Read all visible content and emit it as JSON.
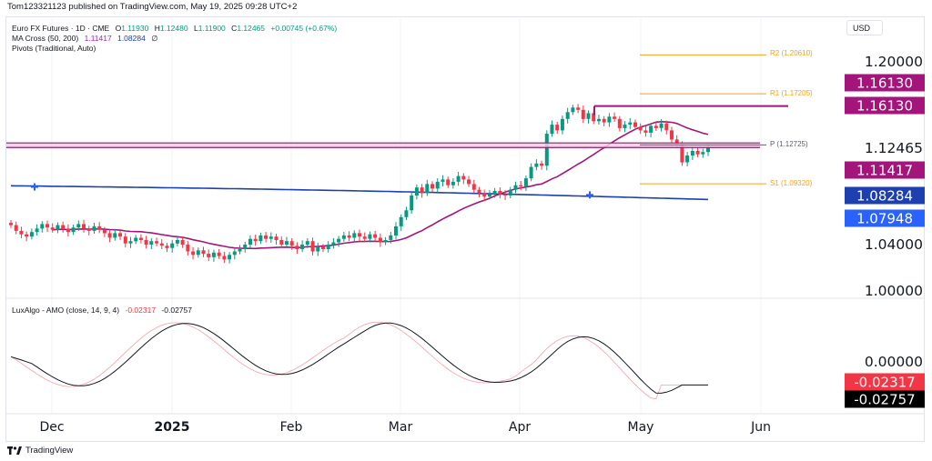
{
  "header": {
    "publish_text": "Tom123321123 published on TradingView.com, May 19, 2025 09:28 UTC+2"
  },
  "legend": {
    "symbol": "Euro FX Futures · 1D · CME",
    "o_label": "O",
    "o": "1.11930",
    "h_label": "H",
    "h": "1.12480",
    "l_label": "L",
    "l": "1.11900",
    "c_label": "C",
    "c": "1.12465",
    "change": "+0.00745 (+0.67%)",
    "ma_name": "MA Cross (50, 200)",
    "ma50": "1.11417",
    "ma200": "1.08284",
    "ma_icon": "∅",
    "pivots_name": "Pivots (Traditional, Auto)",
    "osc_name": "LuxAlgo - AMO (close, 14, 9, 4)",
    "osc_val1": "-0.02317",
    "osc_val2": "-0.02757"
  },
  "pivots": {
    "r2": "R2 (1.20610)",
    "r1": "R1 (1.17205)",
    "p": "P (1.12725)",
    "s1": "S1 (1.09320)"
  },
  "axis": {
    "currency_button": "USD",
    "price_ticks": [
      "1.20000",
      "1.12465",
      "1.04000",
      "1.00000"
    ],
    "osc_ticks": [
      "0.00000"
    ]
  },
  "badges": {
    "top_line_1": "1.16130",
    "top_line_2": "1.16130",
    "ma50": "1.11417",
    "ma200": "1.08284",
    "blue_level": "1.07948",
    "osc1": "-0.02317",
    "osc2": "-0.02757"
  },
  "months": [
    "Dec",
    "2025",
    "Feb",
    "Mar",
    "Apr",
    "May",
    "Jun"
  ],
  "footer": {
    "brand": "TradingView",
    "logo_icon": "tradingview-logo-icon"
  },
  "colors": {
    "up": "#089981",
    "down": "#f23645",
    "ma50": "#a3157a",
    "ma200": "#1e40af",
    "pivot": "#f7a21b",
    "zone": "#f6cbe6",
    "zone_line": "#8e1d71",
    "badge_magenta": "#a3157a",
    "badge_blue1": "#1d3fb0",
    "badge_blue2": "#2962ff",
    "badge_red": "#f23645",
    "badge_black": "#000000"
  },
  "chart_data": [
    {
      "type": "candlestick",
      "title": "Euro FX Futures · 1D · CME",
      "x_range": [
        "2024-11-20",
        "2025-05-19"
      ],
      "y_ticks": [
        1.2,
        1.12465,
        1.04,
        1.0
      ],
      "series": [
        {
          "name": "Euro FX Futures",
          "approx_close": [
            1.057,
            1.052,
            1.049,
            1.047,
            1.051,
            1.054,
            1.058,
            1.055,
            1.053,
            1.057,
            1.054,
            1.051,
            1.055,
            1.058,
            1.054,
            1.052,
            1.056,
            1.053,
            1.05,
            1.046,
            1.05,
            1.047,
            1.041,
            1.043,
            1.046,
            1.044,
            1.04,
            1.043,
            1.041,
            1.039,
            1.037,
            1.041,
            1.044,
            1.04,
            1.034,
            1.031,
            1.035,
            1.032,
            1.029,
            1.033,
            1.03,
            1.027,
            1.031,
            1.034,
            1.036,
            1.04,
            1.045,
            1.043,
            1.048,
            1.045,
            1.047,
            1.044,
            1.04,
            1.043,
            1.039,
            1.036,
            1.04,
            1.043,
            1.034,
            1.038,
            1.036,
            1.04,
            1.042,
            1.045,
            1.048,
            1.046,
            1.05,
            1.047,
            1.045,
            1.049,
            1.046,
            1.042,
            1.044,
            1.048,
            1.056,
            1.064,
            1.07,
            1.083,
            1.09,
            1.085,
            1.093,
            1.089,
            1.095,
            1.097,
            1.092,
            1.095,
            1.1,
            1.097,
            1.093,
            1.088,
            1.085,
            1.082,
            1.084,
            1.087,
            1.084,
            1.083,
            1.088,
            1.092,
            1.091,
            1.098,
            1.108,
            1.111,
            1.109,
            1.137,
            1.145,
            1.14,
            1.15,
            1.156,
            1.16,
            1.158,
            1.15,
            1.155,
            1.148,
            1.15,
            1.147,
            1.152,
            1.15,
            1.142,
            1.145,
            1.147,
            1.143,
            1.14,
            1.138,
            1.144,
            1.142,
            1.146,
            1.14,
            1.132,
            1.128,
            1.112,
            1.118,
            1.122,
            1.119,
            1.121,
            1.1247
          ]
        },
        {
          "name": "MA Cross (50, 200) fast",
          "last": 1.11417
        },
        {
          "name": "MA Cross (50, 200) slow",
          "last": 1.08284
        }
      ],
      "pivots": {
        "R2": 1.2061,
        "R1": 1.17205,
        "P": 1.12725,
        "S1": 1.0932
      },
      "levels": [
        1.1613,
        1.129,
        1.125
      ]
    },
    {
      "type": "area",
      "title": "LuxAlgo - AMO (close, 14, 9, 4)",
      "y_ticks": [
        0.0
      ],
      "series": [
        {
          "name": "AMO",
          "last": -0.02317
        },
        {
          "name": "signal",
          "last": -0.02757
        }
      ]
    }
  ]
}
